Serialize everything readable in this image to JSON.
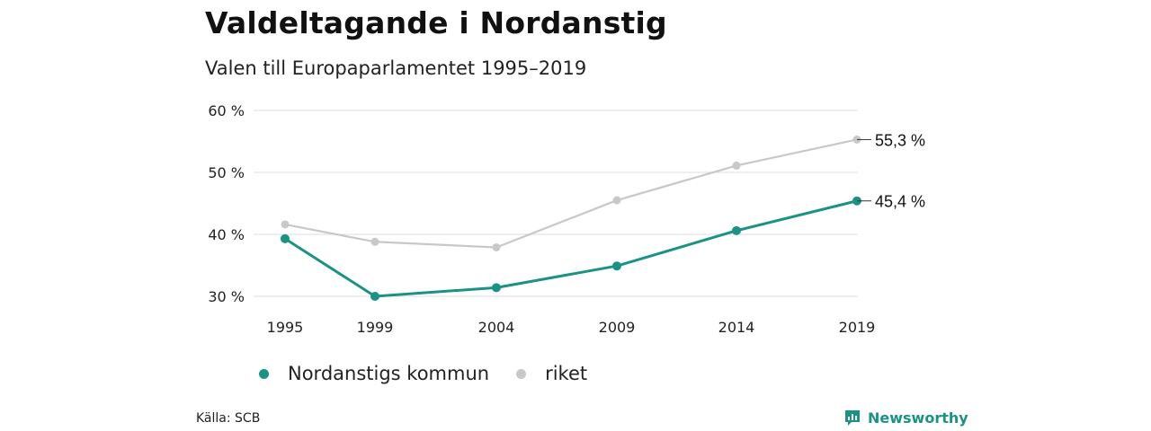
{
  "chart_data": {
    "type": "line",
    "title": "Valdeltagande i Nordanstig",
    "subtitle": "Valen till Europaparlamentet 1995–2019",
    "x": [
      "1995",
      "1999",
      "2004",
      "2009",
      "2014",
      "2019"
    ],
    "ylim": [
      30,
      60
    ],
    "yticks": [
      {
        "value": 30,
        "label": "30 %"
      },
      {
        "value": 40,
        "label": "40 %"
      },
      {
        "value": 50,
        "label": "50 %"
      },
      {
        "value": 60,
        "label": "60 %"
      }
    ],
    "grid": true,
    "legend_position": "bottom-left",
    "series": [
      {
        "name": "Nordanstigs kommun",
        "color": "#1a9384",
        "values": [
          39.3,
          30.0,
          31.4,
          34.9,
          40.6,
          45.4
        ],
        "end_label": "45,4 %"
      },
      {
        "name": "riket",
        "color": "#c8c8c8",
        "values": [
          41.6,
          38.8,
          37.9,
          45.5,
          51.1,
          55.3
        ],
        "end_label": "55,3 %"
      }
    ]
  },
  "footer": {
    "source": "Källa: SCB",
    "brand": "Newsworthy",
    "brand_color": "#1a9384",
    "brand_icon": "newsworthy-logo-icon"
  }
}
